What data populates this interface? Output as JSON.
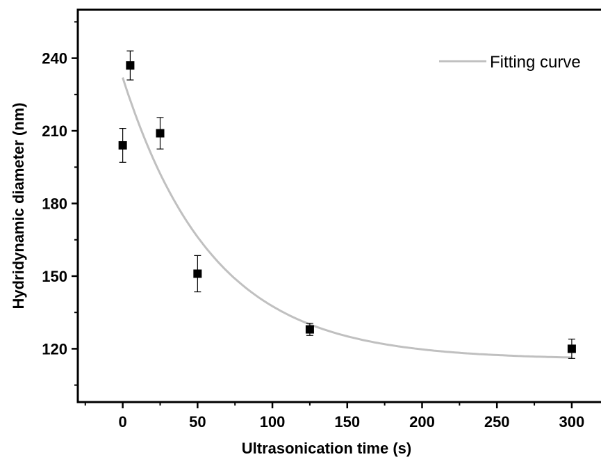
{
  "chart_data": {
    "type": "scatter",
    "title": "",
    "xlabel": "Ultrasonication time (s)",
    "ylabel": "Hydridynamic diameter (nm)",
    "xlim": [
      -30,
      320
    ],
    "ylim": [
      98,
      260
    ],
    "x_ticks": [
      0,
      50,
      100,
      150,
      200,
      250,
      300
    ],
    "y_ticks": [
      120,
      150,
      180,
      210,
      240
    ],
    "grid": false,
    "legend_position": "top-right",
    "series": [
      {
        "type": "scatter",
        "marker": "square",
        "color": "#000000",
        "points": [
          {
            "x": 0,
            "y": 204,
            "err": 7
          },
          {
            "x": 5,
            "y": 237,
            "err": 6
          },
          {
            "x": 25,
            "y": 209,
            "err": 6.5
          },
          {
            "x": 50,
            "y": 151,
            "err": 7.5
          },
          {
            "x": 125,
            "y": 128,
            "err": 2.5
          },
          {
            "x": 300,
            "y": 120,
            "err": 4
          }
        ]
      },
      {
        "type": "line",
        "name": "Fitting curve",
        "color": "#c0c0c0",
        "model": "exponential decay",
        "y0": 115.6,
        "A": 116.4,
        "tau": 60,
        "x_range": [
          0,
          300
        ]
      }
    ]
  }
}
